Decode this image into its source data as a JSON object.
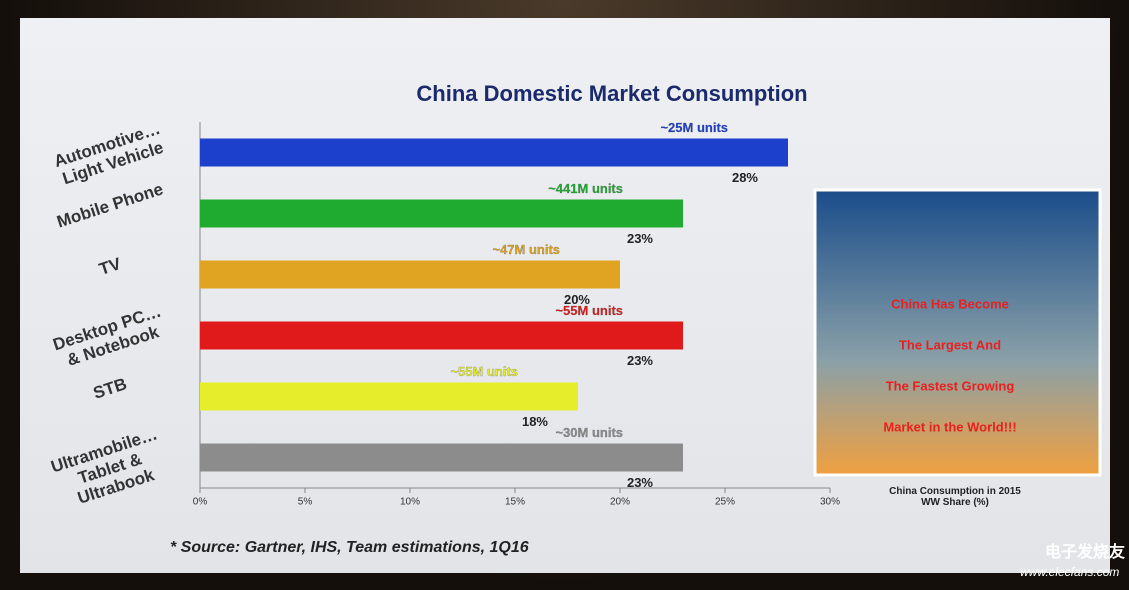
{
  "chart_data": {
    "type": "hbar",
    "title": "China Domestic Market Consumption",
    "categories": [
      "Automotive…\nLight Vehicle",
      "Mobile Phone",
      "TV",
      "Desktop PC…\n& Notebook",
      "STB",
      "Ultramobile…\nTablet &\nUltrabook"
    ],
    "values": [
      28,
      23,
      20,
      23,
      18,
      23
    ],
    "value_labels": [
      "28%",
      "23%",
      "20%",
      "23%",
      "18%",
      "23%"
    ],
    "unit_labels": [
      "~25M units",
      "~441M units",
      "~47M units",
      "~55M units",
      "~55M units",
      "~30M units"
    ],
    "colors": [
      "#1c3fcc",
      "#1faa30",
      "#e0a322",
      "#e01a1a",
      "#e6ee2c",
      "#8c8c8c"
    ],
    "xlim": [
      0,
      30
    ],
    "xticks": [
      {
        "value": 0,
        "label": "0%"
      },
      {
        "value": 5,
        "label": "5%"
      },
      {
        "value": 10,
        "label": "10%"
      },
      {
        "value": 15,
        "label": "15%"
      },
      {
        "value": 20,
        "label": "20%"
      },
      {
        "value": 25,
        "label": "25%"
      },
      {
        "value": 30,
        "label": "30%"
      }
    ],
    "xlabel": "China Consumption in 2015\nWW Share (%)",
    "source": "* Source: Gartner, IHS, Team estimations, 1Q16",
    "panel_text": [
      "China Has Become",
      "The Largest And",
      "The Fastest Growing",
      "Market in the World!!!"
    ]
  },
  "watermark": {
    "brand": "电子发烧友",
    "url": "www.elecfans.com"
  }
}
